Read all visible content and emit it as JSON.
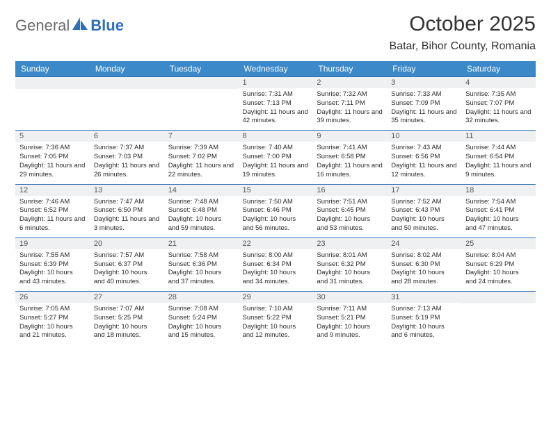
{
  "logo": {
    "text1": "General",
    "text2": "Blue"
  },
  "title": "October 2025",
  "location": "Batar, Bihor County, Romania",
  "colors": {
    "header_bg": "#3b89c9",
    "header_text": "#ffffff",
    "row_divider": "#2e6fb7",
    "daynum_bg": "#eef0f1",
    "logo_gray": "#6a6a6a",
    "logo_blue": "#2e6fb7",
    "page_bg": "#ffffff",
    "body_text": "#2b2b2b"
  },
  "weekdays": [
    "Sunday",
    "Monday",
    "Tuesday",
    "Wednesday",
    "Thursday",
    "Friday",
    "Saturday"
  ],
  "weeks": [
    [
      {
        "day": "",
        "sunrise": "",
        "sunset": "",
        "daylight": ""
      },
      {
        "day": "",
        "sunrise": "",
        "sunset": "",
        "daylight": ""
      },
      {
        "day": "",
        "sunrise": "",
        "sunset": "",
        "daylight": ""
      },
      {
        "day": "1",
        "sunrise": "Sunrise: 7:31 AM",
        "sunset": "Sunset: 7:13 PM",
        "daylight": "Daylight: 11 hours and 42 minutes."
      },
      {
        "day": "2",
        "sunrise": "Sunrise: 7:32 AM",
        "sunset": "Sunset: 7:11 PM",
        "daylight": "Daylight: 11 hours and 39 minutes."
      },
      {
        "day": "3",
        "sunrise": "Sunrise: 7:33 AM",
        "sunset": "Sunset: 7:09 PM",
        "daylight": "Daylight: 11 hours and 35 minutes."
      },
      {
        "day": "4",
        "sunrise": "Sunrise: 7:35 AM",
        "sunset": "Sunset: 7:07 PM",
        "daylight": "Daylight: 11 hours and 32 minutes."
      }
    ],
    [
      {
        "day": "5",
        "sunrise": "Sunrise: 7:36 AM",
        "sunset": "Sunset: 7:05 PM",
        "daylight": "Daylight: 11 hours and 29 minutes."
      },
      {
        "day": "6",
        "sunrise": "Sunrise: 7:37 AM",
        "sunset": "Sunset: 7:03 PM",
        "daylight": "Daylight: 11 hours and 26 minutes."
      },
      {
        "day": "7",
        "sunrise": "Sunrise: 7:39 AM",
        "sunset": "Sunset: 7:02 PM",
        "daylight": "Daylight: 11 hours and 22 minutes."
      },
      {
        "day": "8",
        "sunrise": "Sunrise: 7:40 AM",
        "sunset": "Sunset: 7:00 PM",
        "daylight": "Daylight: 11 hours and 19 minutes."
      },
      {
        "day": "9",
        "sunrise": "Sunrise: 7:41 AM",
        "sunset": "Sunset: 6:58 PM",
        "daylight": "Daylight: 11 hours and 16 minutes."
      },
      {
        "day": "10",
        "sunrise": "Sunrise: 7:43 AM",
        "sunset": "Sunset: 6:56 PM",
        "daylight": "Daylight: 11 hours and 12 minutes."
      },
      {
        "day": "11",
        "sunrise": "Sunrise: 7:44 AM",
        "sunset": "Sunset: 6:54 PM",
        "daylight": "Daylight: 11 hours and 9 minutes."
      }
    ],
    [
      {
        "day": "12",
        "sunrise": "Sunrise: 7:46 AM",
        "sunset": "Sunset: 6:52 PM",
        "daylight": "Daylight: 11 hours and 6 minutes."
      },
      {
        "day": "13",
        "sunrise": "Sunrise: 7:47 AM",
        "sunset": "Sunset: 6:50 PM",
        "daylight": "Daylight: 11 hours and 3 minutes."
      },
      {
        "day": "14",
        "sunrise": "Sunrise: 7:48 AM",
        "sunset": "Sunset: 6:48 PM",
        "daylight": "Daylight: 10 hours and 59 minutes."
      },
      {
        "day": "15",
        "sunrise": "Sunrise: 7:50 AM",
        "sunset": "Sunset: 6:46 PM",
        "daylight": "Daylight: 10 hours and 56 minutes."
      },
      {
        "day": "16",
        "sunrise": "Sunrise: 7:51 AM",
        "sunset": "Sunset: 6:45 PM",
        "daylight": "Daylight: 10 hours and 53 minutes."
      },
      {
        "day": "17",
        "sunrise": "Sunrise: 7:52 AM",
        "sunset": "Sunset: 6:43 PM",
        "daylight": "Daylight: 10 hours and 50 minutes."
      },
      {
        "day": "18",
        "sunrise": "Sunrise: 7:54 AM",
        "sunset": "Sunset: 6:41 PM",
        "daylight": "Daylight: 10 hours and 47 minutes."
      }
    ],
    [
      {
        "day": "19",
        "sunrise": "Sunrise: 7:55 AM",
        "sunset": "Sunset: 6:39 PM",
        "daylight": "Daylight: 10 hours and 43 minutes."
      },
      {
        "day": "20",
        "sunrise": "Sunrise: 7:57 AM",
        "sunset": "Sunset: 6:37 PM",
        "daylight": "Daylight: 10 hours and 40 minutes."
      },
      {
        "day": "21",
        "sunrise": "Sunrise: 7:58 AM",
        "sunset": "Sunset: 6:36 PM",
        "daylight": "Daylight: 10 hours and 37 minutes."
      },
      {
        "day": "22",
        "sunrise": "Sunrise: 8:00 AM",
        "sunset": "Sunset: 6:34 PM",
        "daylight": "Daylight: 10 hours and 34 minutes."
      },
      {
        "day": "23",
        "sunrise": "Sunrise: 8:01 AM",
        "sunset": "Sunset: 6:32 PM",
        "daylight": "Daylight: 10 hours and 31 minutes."
      },
      {
        "day": "24",
        "sunrise": "Sunrise: 8:02 AM",
        "sunset": "Sunset: 6:30 PM",
        "daylight": "Daylight: 10 hours and 28 minutes."
      },
      {
        "day": "25",
        "sunrise": "Sunrise: 8:04 AM",
        "sunset": "Sunset: 6:29 PM",
        "daylight": "Daylight: 10 hours and 24 minutes."
      }
    ],
    [
      {
        "day": "26",
        "sunrise": "Sunrise: 7:05 AM",
        "sunset": "Sunset: 5:27 PM",
        "daylight": "Daylight: 10 hours and 21 minutes."
      },
      {
        "day": "27",
        "sunrise": "Sunrise: 7:07 AM",
        "sunset": "Sunset: 5:25 PM",
        "daylight": "Daylight: 10 hours and 18 minutes."
      },
      {
        "day": "28",
        "sunrise": "Sunrise: 7:08 AM",
        "sunset": "Sunset: 5:24 PM",
        "daylight": "Daylight: 10 hours and 15 minutes."
      },
      {
        "day": "29",
        "sunrise": "Sunrise: 7:10 AM",
        "sunset": "Sunset: 5:22 PM",
        "daylight": "Daylight: 10 hours and 12 minutes."
      },
      {
        "day": "30",
        "sunrise": "Sunrise: 7:11 AM",
        "sunset": "Sunset: 5:21 PM",
        "daylight": "Daylight: 10 hours and 9 minutes."
      },
      {
        "day": "31",
        "sunrise": "Sunrise: 7:13 AM",
        "sunset": "Sunset: 5:19 PM",
        "daylight": "Daylight: 10 hours and 6 minutes."
      },
      {
        "day": "",
        "sunrise": "",
        "sunset": "",
        "daylight": ""
      }
    ]
  ]
}
